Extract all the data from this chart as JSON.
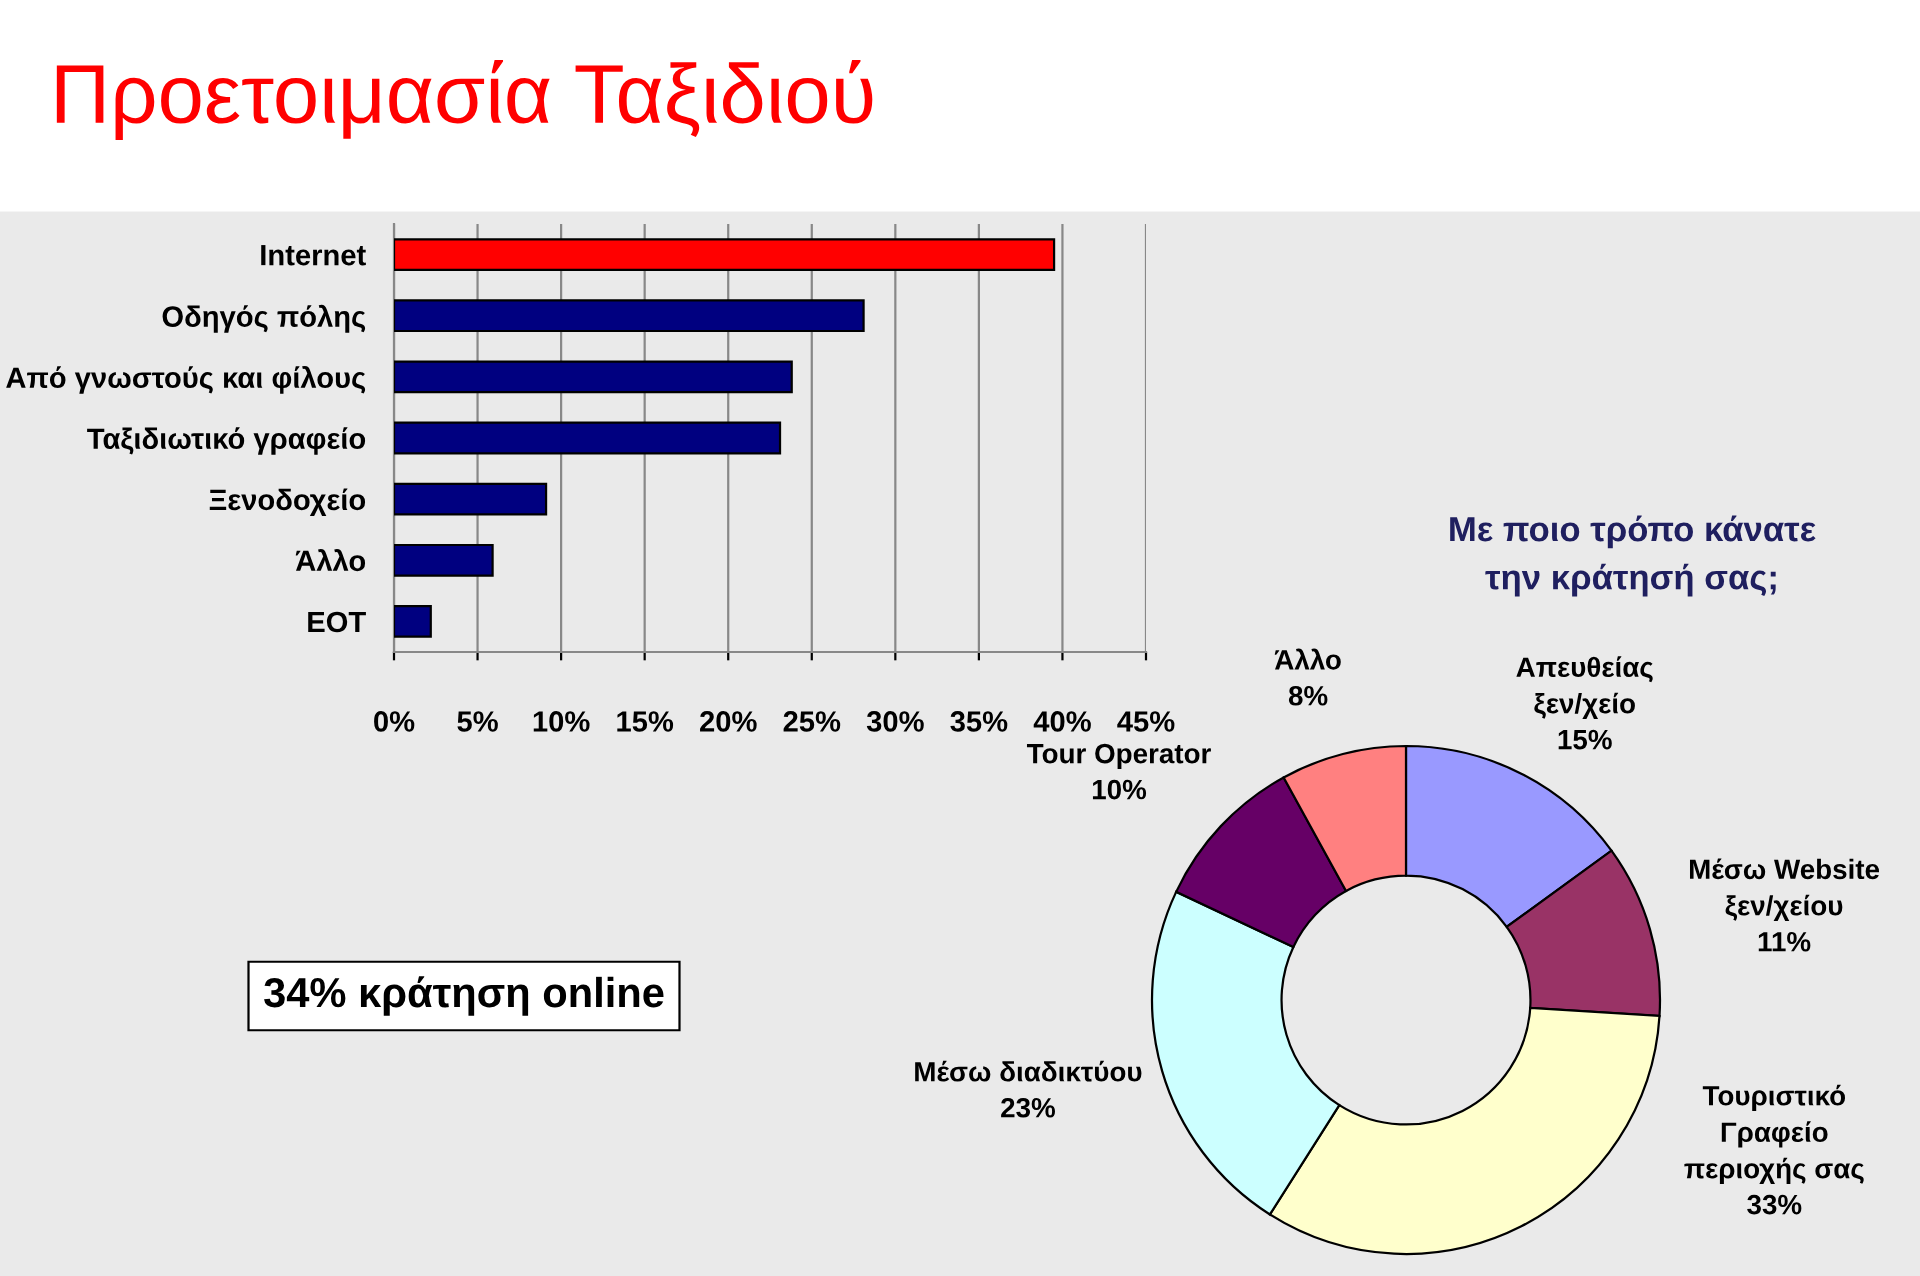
{
  "chart_data": [
    {
      "type": "bar",
      "orientation": "horizontal",
      "title": "Προετοιμασία Ταξιδιού",
      "categories": [
        "Internet",
        "Οδηγός πόλης",
        "Από γνωστούς και φίλους",
        "Ταξιδιωτικό γραφείο",
        "Ξενοδοχείο",
        "Άλλο",
        "ΕΟΤ"
      ],
      "values": [
        39.5,
        28.1,
        23.8,
        23.1,
        9.1,
        5.9,
        2.2
      ],
      "colors": [
        "#ff0000",
        "#000080",
        "#000080",
        "#000080",
        "#000080",
        "#000080",
        "#000080"
      ],
      "xlim": [
        0,
        45
      ],
      "xticks": [
        {
          "value": 0,
          "label": "0%"
        },
        {
          "value": 5,
          "label": "5%"
        },
        {
          "value": 10,
          "label": "10%"
        },
        {
          "value": 15,
          "label": "15%"
        },
        {
          "value": 20,
          "label": "20%"
        },
        {
          "value": 25,
          "label": "25%"
        },
        {
          "value": 30,
          "label": "30%"
        },
        {
          "value": 35,
          "label": "35%"
        },
        {
          "value": 40,
          "label": "40%"
        },
        {
          "value": 45,
          "label": "45%"
        }
      ],
      "grid": "x",
      "annotations": [
        "34% κράτηση online"
      ]
    },
    {
      "type": "donut",
      "title": "Με ποιο τρόπο κάνατε\nτην κράτησή σας;",
      "categories": [
        "Απευθείας\nξεν/χείο",
        "Μέσω Website\nξεν/χείου",
        "Τουριστικό\nΓραφείο\nπεριοχής σας",
        "Μέσω διαδικτύου",
        "Tour Operator",
        "Άλλο"
      ],
      "values": [
        15,
        11,
        33,
        23,
        10,
        8
      ],
      "value_labels": [
        "15%",
        "11%",
        "33%",
        "23%",
        "10%",
        "8%"
      ],
      "colors": [
        "#9999ff",
        "#993366",
        "#ffffcc",
        "#ccffff",
        "#660066",
        "#ff8080"
      ]
    }
  ]
}
